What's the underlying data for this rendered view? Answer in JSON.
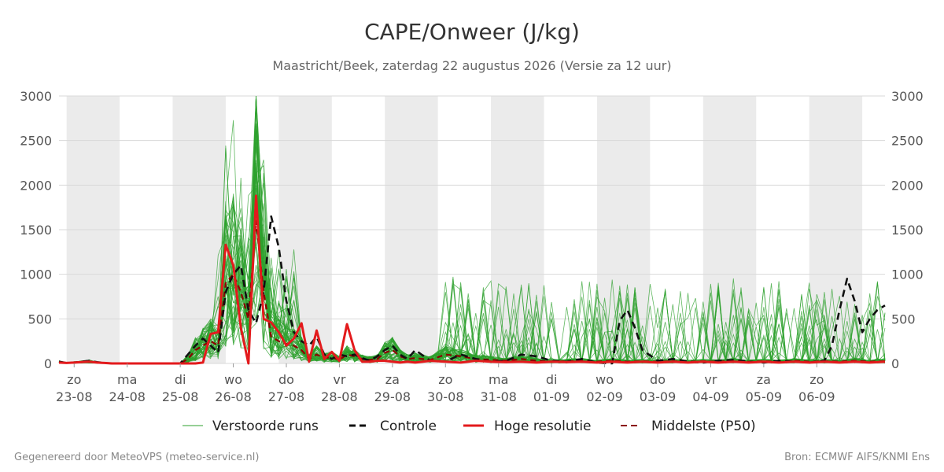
{
  "chart_data": {
    "type": "line",
    "title": "CAPE/Onweer (J/kg)",
    "subtitle": "Maastricht/Beek, zaterdag 22 augustus 2026 (Versie za 12 uur)",
    "ylim": [
      0,
      3000
    ],
    "yticks": [
      0,
      500,
      1000,
      1500,
      2000,
      2500,
      3000
    ],
    "xlim": [
      -1,
      108
    ],
    "categories": [
      {
        "day": "zo",
        "date": "23-08"
      },
      {
        "day": "ma",
        "date": "24-08"
      },
      {
        "day": "di",
        "date": "25-08"
      },
      {
        "day": "wo",
        "date": "26-08"
      },
      {
        "day": "do",
        "date": "27-08"
      },
      {
        "day": "vr",
        "date": "28-08"
      },
      {
        "day": "za",
        "date": "29-08"
      },
      {
        "day": "zo",
        "date": "30-08"
      },
      {
        "day": "ma",
        "date": "31-08"
      },
      {
        "day": "di",
        "date": "01-09"
      },
      {
        "day": "wo",
        "date": "02-09"
      },
      {
        "day": "do",
        "date": "03-09"
      },
      {
        "day": "vr",
        "date": "04-09"
      },
      {
        "day": "za",
        "date": "05-09"
      },
      {
        "day": "zo",
        "date": "06-09"
      }
    ],
    "shaded_days": [
      0,
      2,
      4,
      6,
      8,
      10,
      12,
      14
    ],
    "grid": true,
    "legend_position": "bottom",
    "colors": {
      "ensemble": "#2ca02c",
      "control": "#111111",
      "hires": "#e31a1c",
      "median": "#8b0000",
      "shade": "#ebebeb",
      "grid": "#d9d9d9"
    },
    "series": [
      {
        "name": "Controle",
        "style": "dashed",
        "x": [
          -1,
          0,
          1,
          2,
          3,
          4,
          5,
          6,
          7,
          8,
          9,
          10,
          11,
          12,
          13,
          14,
          15,
          16,
          17,
          18,
          19,
          20,
          21,
          22,
          23,
          24,
          25,
          26,
          27,
          28,
          29,
          30,
          31,
          32,
          33,
          34,
          35,
          36,
          37,
          38,
          39,
          40,
          41,
          42,
          43,
          44,
          45,
          46,
          48,
          50,
          52,
          54,
          56,
          58,
          60,
          62,
          64,
          66,
          68,
          70,
          72,
          73,
          74,
          75,
          76,
          78,
          80,
          82,
          84,
          86,
          88,
          90,
          92,
          94,
          96,
          98,
          100,
          101,
          102,
          103,
          104,
          105,
          106,
          107,
          108
        ],
        "y": [
          20,
          5,
          10,
          20,
          30,
          15,
          5,
          0,
          0,
          0,
          0,
          0,
          0,
          0,
          0,
          0,
          0,
          100,
          200,
          280,
          200,
          120,
          800,
          1000,
          1100,
          600,
          450,
          800,
          1650,
          1300,
          700,
          350,
          250,
          200,
          300,
          100,
          50,
          100,
          80,
          100,
          60,
          30,
          80,
          150,
          200,
          100,
          50,
          150,
          30,
          20,
          100,
          50,
          20,
          30,
          100,
          80,
          30,
          20,
          50,
          10,
          0,
          480,
          600,
          400,
          150,
          30,
          50,
          20,
          10,
          30,
          40,
          20,
          10,
          30,
          20,
          10,
          30,
          200,
          600,
          950,
          700,
          350,
          500,
          600,
          650
        ]
      },
      {
        "name": "Hoge resolutie",
        "style": "solid",
        "x": [
          -1,
          0,
          1,
          2,
          3,
          4,
          5,
          6,
          7,
          8,
          9,
          10,
          11,
          12,
          13,
          14,
          15,
          16,
          17,
          18,
          19,
          20,
          21,
          22,
          23,
          24,
          25,
          26,
          27,
          28,
          29,
          30,
          31,
          32,
          33,
          34,
          35,
          36,
          37,
          38,
          39,
          40,
          41,
          42,
          43,
          44,
          45,
          46,
          48,
          50,
          52,
          54,
          56,
          58,
          60,
          62,
          64,
          66,
          68,
          70,
          72,
          74,
          76,
          78,
          80,
          82,
          84,
          86,
          88,
          90,
          92,
          94,
          96,
          98,
          100,
          102,
          104,
          106,
          108
        ],
        "y": [
          10,
          5,
          10,
          15,
          20,
          10,
          5,
          0,
          0,
          0,
          0,
          0,
          0,
          0,
          0,
          0,
          0,
          0,
          0,
          10,
          330,
          350,
          1330,
          1100,
          400,
          0,
          1880,
          500,
          460,
          350,
          200,
          280,
          450,
          20,
          370,
          50,
          130,
          30,
          440,
          150,
          20,
          20,
          30,
          30,
          20,
          10,
          20,
          10,
          30,
          20,
          10,
          30,
          20,
          15,
          20,
          10,
          20,
          15,
          20,
          10,
          20,
          10,
          20,
          10,
          20,
          10,
          20,
          10,
          20,
          10,
          20,
          10,
          20,
          10,
          20,
          10,
          20,
          10,
          20
        ]
      },
      {
        "name": "Middelste (P50)",
        "style": "dashed",
        "x": [
          -1,
          0,
          1,
          2,
          3,
          4,
          5,
          6,
          7,
          8,
          9,
          10,
          11,
          12,
          13,
          14,
          15,
          16,
          17,
          18,
          19,
          20,
          21,
          22,
          23,
          24,
          25,
          26,
          27,
          28,
          29,
          30,
          31,
          32,
          33,
          34,
          35,
          36,
          37,
          38,
          39,
          40,
          41,
          42,
          43,
          44,
          45,
          46,
          48,
          50,
          52,
          54,
          56,
          58,
          60,
          62,
          64,
          66,
          68,
          70,
          72,
          74,
          76,
          78,
          80,
          82,
          84,
          86,
          88,
          90,
          92,
          94,
          96,
          98,
          100,
          102,
          104,
          106,
          108
        ],
        "y": [
          15,
          5,
          10,
          15,
          20,
          10,
          5,
          0,
          0,
          0,
          0,
          0,
          0,
          0,
          0,
          0,
          0,
          50,
          150,
          200,
          250,
          200,
          900,
          1000,
          800,
          500,
          1600,
          800,
          300,
          250,
          220,
          200,
          150,
          50,
          100,
          60,
          70,
          40,
          100,
          80,
          50,
          40,
          50,
          120,
          150,
          80,
          50,
          60,
          40,
          100,
          80,
          50,
          40,
          30,
          50,
          30,
          20,
          25,
          30,
          20,
          30,
          20,
          25,
          20,
          25,
          20,
          25,
          20,
          30,
          20,
          25,
          20,
          30,
          20,
          25,
          20,
          30,
          20,
          25
        ]
      }
    ],
    "legend": [
      {
        "label": "Verstoorde runs",
        "style": "ensemble"
      },
      {
        "label": "Controle",
        "style": "control"
      },
      {
        "label": "Hoge resolutie",
        "style": "hires"
      },
      {
        "label": "Middelste (P50)",
        "style": "median"
      }
    ]
  },
  "footer": {
    "left": "Gegenereerd door MeteoVPS (meteo-service.nl)",
    "right": "Bron: ECMWF AIFS/KNMI Ens"
  }
}
